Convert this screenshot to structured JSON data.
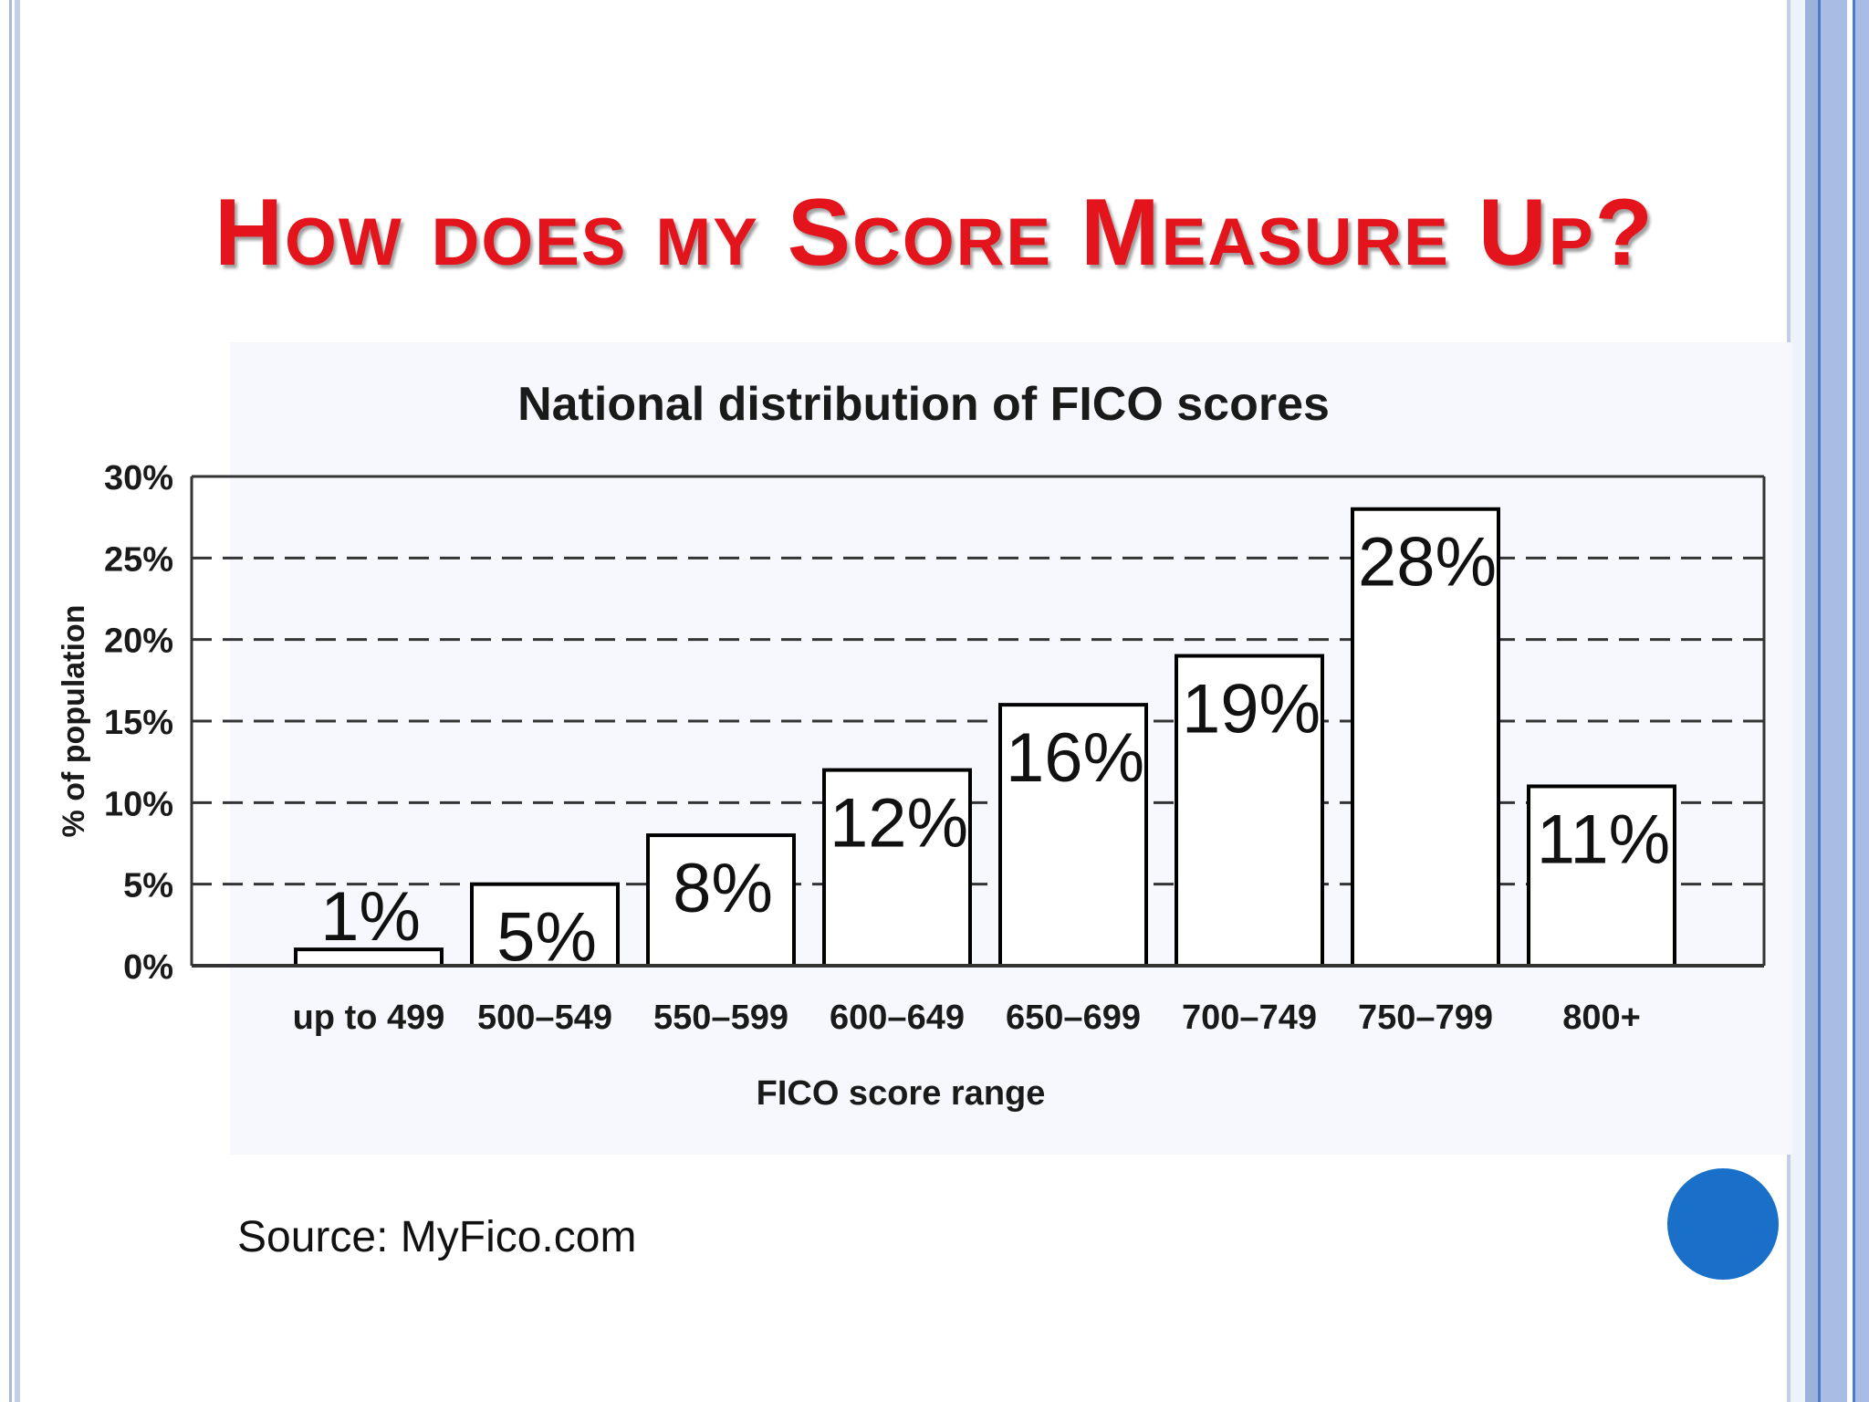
{
  "slide": {
    "title": "How does my Score Measure Up?",
    "source": "Source: MyFico.com",
    "colors": {
      "title": "#e4141c",
      "accent_dot": "#1a6fc9",
      "frame": "#4f79c9"
    }
  },
  "chart_data": {
    "type": "bar",
    "title": "National distribution of FICO scores",
    "xlabel": "FICO score range",
    "ylabel": "% of population",
    "categories": [
      "up to 499",
      "500–549",
      "550–599",
      "600–649",
      "650–699",
      "700–749",
      "750–799",
      "800+"
    ],
    "values": [
      1,
      5,
      8,
      12,
      16,
      19,
      28,
      11
    ],
    "data_labels": [
      "1%",
      "5%",
      "8%",
      "12%",
      "16%",
      "19%",
      "28%",
      "11%"
    ],
    "y_ticks": [
      "0%",
      "5%",
      "10%",
      "15%",
      "20%",
      "25%",
      "30%"
    ],
    "ylim": [
      0,
      30
    ],
    "grid": "dashed horizontal",
    "legend": "none"
  }
}
